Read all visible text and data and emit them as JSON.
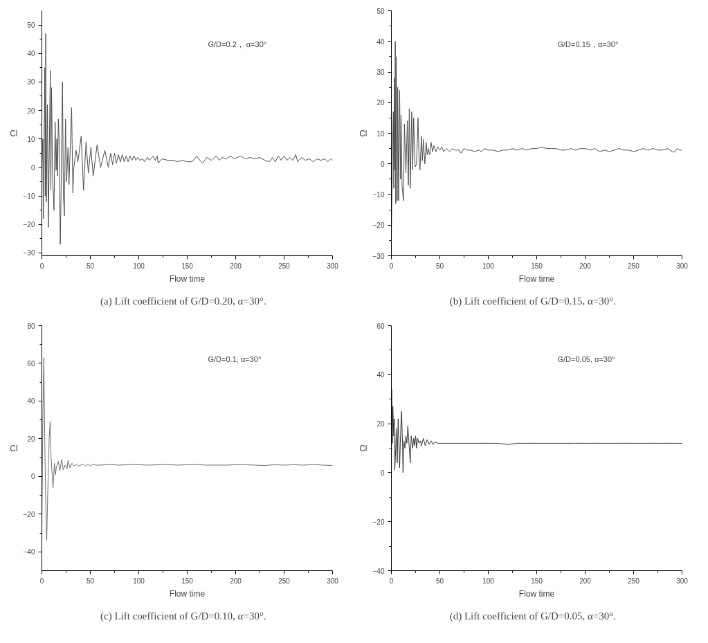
{
  "chart_data": [
    {
      "type": "line",
      "xlabel": "Flow time",
      "ylabel": "Cl",
      "xlim": [
        0,
        300
      ],
      "ylim": [
        -31,
        55
      ],
      "xticks": [
        0,
        50,
        100,
        150,
        200,
        250,
        300
      ],
      "yticks": [
        -30,
        -20,
        -10,
        0,
        10,
        20,
        30,
        40,
        50
      ],
      "annotations": [
        "G/D=0.2， α=30°",
        "(a)    Lift coefficient of G/D=0.20, α=30°."
      ],
      "x": [
        0,
        1,
        1.5,
        2.3,
        3,
        3.5,
        4,
        4.6,
        5.7,
        6.7,
        7.6,
        8.7,
        9.3,
        10,
        11,
        12.5,
        13.7,
        14.7,
        15.5,
        16.2,
        17,
        17.8,
        19,
        20,
        21.3,
        22.2,
        23.2,
        24.4,
        25.5,
        27,
        28,
        30.7,
        32,
        33,
        35.3,
        37.2,
        40.6,
        43,
        45.6,
        48,
        50.6,
        53,
        57,
        60.6,
        65,
        68.6,
        71,
        73,
        75,
        77,
        79,
        81,
        83,
        85,
        87,
        89,
        91,
        93,
        95,
        97,
        99,
        101,
        104,
        106,
        109,
        111,
        115,
        117,
        119,
        120,
        124,
        130,
        135,
        140,
        145,
        150,
        155,
        160,
        163,
        166,
        170,
        175,
        180,
        183,
        186,
        190,
        195,
        198,
        205,
        210,
        215,
        220,
        225,
        230,
        235,
        238,
        241,
        244,
        247,
        250,
        253,
        256,
        259,
        262,
        264,
        268,
        272,
        276,
        280,
        284,
        288,
        292,
        295,
        298,
        300
      ],
      "series": [
        {
          "color": "#4d4d4d",
          "values": [
            0,
            10,
            -18,
            8,
            35,
            -10,
            47,
            -12,
            22,
            -21,
            5,
            34,
            -8,
            28,
            -2,
            -15,
            16,
            -1,
            10,
            -3,
            17,
            10,
            -27,
            -5,
            30,
            -10,
            -17,
            17,
            -5,
            7,
            -6,
            21,
            -9,
            0,
            6,
            2,
            11,
            -8,
            9,
            -2,
            7,
            -3,
            8,
            0,
            6,
            0,
            5,
            1,
            5,
            1.5,
            4.5,
            2,
            4.5,
            2,
            4,
            2,
            4,
            2.5,
            4,
            2.5,
            3.5,
            2.5,
            3,
            2,
            3.5,
            2.5,
            4,
            2.5,
            4,
            1.5,
            3,
            2.5,
            2.5,
            2,
            2.5,
            2,
            2,
            4,
            2.5,
            1.5,
            3.5,
            2.5,
            4,
            2.5,
            3.5,
            3,
            4,
            3,
            4,
            3,
            3.5,
            3,
            3.5,
            2.5,
            2,
            3.5,
            2,
            4,
            2.5,
            4,
            2.5,
            3.5,
            2.5,
            4.5,
            2,
            3.5,
            2.5,
            3,
            2,
            3,
            2.5,
            3,
            2,
            3,
            2.5
          ]
        }
      ]
    },
    {
      "type": "line",
      "xlabel": "Flow time",
      "ylabel": "Cl",
      "xlim": [
        0,
        300
      ],
      "ylim": [
        -30,
        50
      ],
      "xticks": [
        0,
        50,
        100,
        150,
        200,
        250,
        300
      ],
      "yticks": [
        -30,
        -20,
        -10,
        0,
        10,
        20,
        30,
        40,
        50
      ],
      "annotations": [
        "G/D=0.15，α=30°",
        "(b)    Lift coefficient of G/D=0.15, α=30°."
      ],
      "x": [
        0,
        1,
        2,
        2.5,
        3,
        3.5,
        4,
        4.5,
        5,
        6,
        6.5,
        7.5,
        8.5,
        9.5,
        10,
        11,
        12.5,
        13.5,
        15,
        16.5,
        17.5,
        18.5,
        19.5,
        21,
        22,
        23,
        24.5,
        26,
        27.5,
        28.5,
        29.5,
        31,
        32,
        33,
        34.5,
        36,
        37,
        38,
        39.5,
        41,
        42.5,
        44,
        46,
        48,
        50,
        52,
        54,
        57,
        60,
        63,
        66,
        70,
        72,
        75,
        78,
        82,
        86,
        90,
        93,
        96,
        100,
        105,
        110,
        115,
        120,
        125,
        130,
        135,
        140,
        145,
        150,
        155,
        160,
        165,
        170,
        175,
        180,
        185,
        190,
        195,
        200,
        205,
        210,
        215,
        220,
        225,
        230,
        235,
        240,
        245,
        250,
        255,
        260,
        265,
        270,
        275,
        280,
        285,
        290,
        292,
        295,
        298,
        300
      ],
      "series": [
        {
          "color": "#4d4d4d",
          "values": [
            -23,
            2,
            17,
            -8,
            28,
            -2,
            40,
            -13,
            35,
            -12,
            25,
            -12,
            24,
            -5,
            16,
            -7,
            -12,
            13,
            -3,
            14,
            -7,
            18,
            -8,
            17,
            -2,
            15,
            -1,
            0,
            15,
            3,
            -2,
            9,
            1,
            8,
            0,
            7,
            3,
            5,
            3,
            7,
            4,
            6,
            4,
            5.5,
            4.5,
            5.5,
            4,
            5,
            4,
            5,
            4.5,
            4.5,
            3.5,
            5,
            4.5,
            4.5,
            4,
            4.5,
            4,
            5,
            4.5,
            4.5,
            4,
            4.5,
            4.5,
            5,
            4.5,
            5,
            4.5,
            5,
            5,
            5.5,
            5,
            5,
            5,
            4.5,
            4.5,
            5,
            4.5,
            5,
            5,
            4.5,
            5,
            4,
            4.5,
            4,
            4.5,
            5,
            4.5,
            4.5,
            4,
            4.5,
            5,
            4.5,
            5,
            4.5,
            4.5,
            5,
            4,
            3.8,
            5,
            4.5,
            4.5
          ]
        }
      ]
    },
    {
      "type": "line",
      "xlabel": "Flow time",
      "ylabel": "Cl",
      "xlim": [
        0,
        300
      ],
      "ylim": [
        -50,
        80
      ],
      "xticks": [
        0,
        50,
        100,
        150,
        200,
        250,
        300
      ],
      "yticks": [
        -40,
        -20,
        0,
        20,
        40,
        60,
        80
      ],
      "annotations": [
        "G/D=0.1, α=30°",
        "(c)    Lift coefficient of G/D=0.10, α=30°."
      ],
      "x": [
        0,
        1,
        2,
        3,
        4,
        5,
        6,
        7.5,
        8.5,
        9.5,
        11.5,
        13,
        14,
        15,
        17,
        18.5,
        20.5,
        22,
        24,
        26,
        27,
        29,
        31,
        33,
        36,
        38,
        40,
        43,
        45,
        48,
        50,
        53,
        56,
        60,
        70,
        80,
        90,
        100,
        110,
        120,
        130,
        140,
        150,
        160,
        170,
        180,
        190,
        200,
        210,
        220,
        230,
        240,
        250,
        260,
        270,
        280,
        290,
        300
      ],
      "series": [
        {
          "color": "#6e6e6e",
          "values": [
            -30,
            30,
            63,
            20,
            -15,
            -34,
            -10,
            20,
            29,
            10,
            -6,
            7,
            1,
            5,
            8,
            3,
            9,
            3.5,
            6,
            4,
            8.5,
            4.5,
            7,
            5.5,
            6.5,
            5.5,
            6,
            6.5,
            5.5,
            6.5,
            5.5,
            6.5,
            6,
            6,
            6.3,
            6,
            6.3,
            6.2,
            6,
            6.2,
            6.3,
            6,
            6.2,
            6.3,
            6,
            6,
            6,
            6.2,
            6.2,
            6,
            5.8,
            6.2,
            6,
            6.2,
            6,
            6.3,
            6,
            5.8
          ]
        }
      ]
    },
    {
      "type": "line",
      "xlabel": "Flow time",
      "ylabel": "Cl",
      "xlim": [
        0,
        300
      ],
      "ylim": [
        -40,
        60
      ],
      "xticks": [
        0,
        50,
        100,
        150,
        200,
        250,
        300
      ],
      "yticks": [
        -40,
        -20,
        0,
        20,
        40,
        60
      ],
      "annotations": [
        "G/D=0.05, α=30°",
        "(d)    Lift coefficient of G/D=0.05, α=30°."
      ],
      "x": [
        0,
        0.3,
        1,
        1.5,
        2.5,
        3,
        3.5,
        4.5,
        5,
        6,
        7,
        8,
        8.5,
        9.5,
        10.5,
        11.5,
        12,
        13,
        14,
        15,
        16,
        17,
        18,
        19.5,
        20.5,
        22,
        23,
        24,
        25,
        26,
        27,
        28.5,
        30,
        31,
        33,
        35,
        37,
        39,
        41,
        43,
        45,
        48,
        50,
        55,
        60,
        70,
        80,
        90,
        100,
        110,
        120,
        130,
        140,
        150,
        160,
        170,
        180,
        190,
        200,
        210,
        220,
        230,
        240,
        250,
        260,
        270,
        280,
        290,
        300
      ],
      "series": [
        {
          "color": "#333333",
          "values": [
            -3,
            34,
            12,
            27,
            15,
            22,
            1,
            10,
            18,
            4,
            22,
            10,
            2,
            16,
            25,
            12,
            0,
            13,
            10,
            15,
            12,
            19,
            13,
            4,
            15,
            10,
            14,
            11,
            15,
            10,
            14,
            12,
            13,
            11,
            14,
            11,
            13.5,
            11.5,
            13,
            11.5,
            12.5,
            12,
            12,
            12,
            12,
            12,
            12,
            12,
            12,
            12,
            11.5,
            12,
            12,
            12,
            12,
            12,
            12,
            12,
            12,
            12,
            12,
            12,
            12,
            12,
            12,
            12,
            12,
            12,
            12
          ]
        }
      ]
    }
  ]
}
